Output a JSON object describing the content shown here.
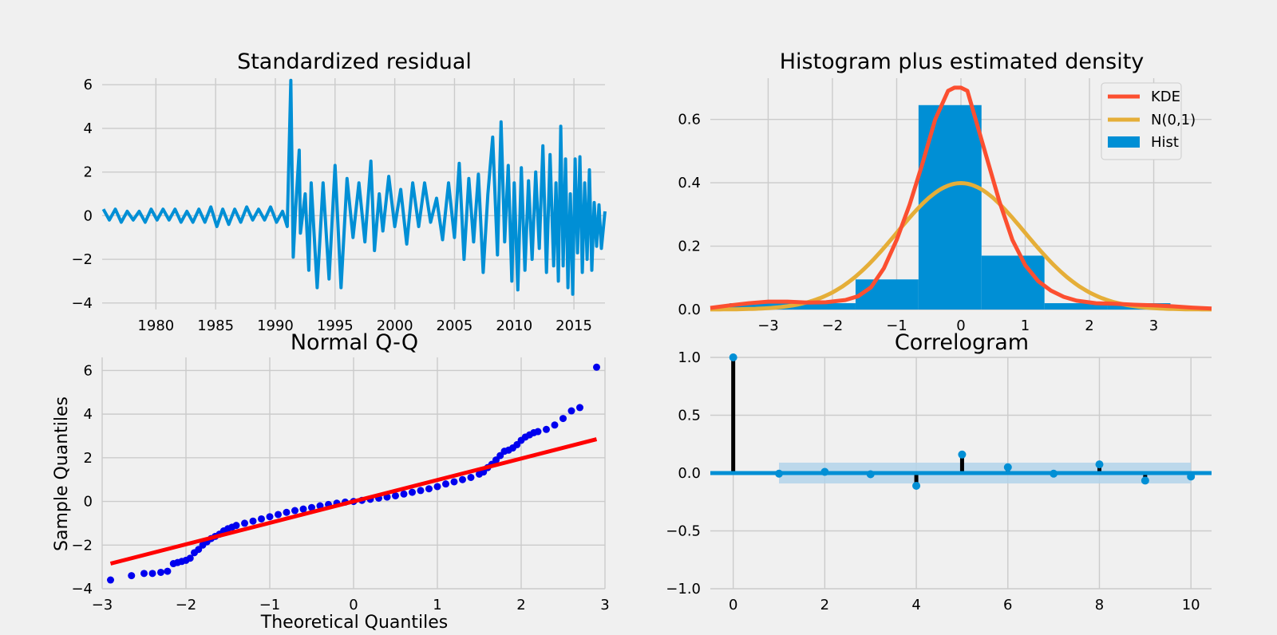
{
  "colors": {
    "background": "#f0f0f0",
    "grid": "#cbcbcb",
    "series_blue": "#008fd5",
    "kde": "#fc4f30",
    "normal": "#e5ae38",
    "qq_points": "#0000ee",
    "qq_line": "#ff0000",
    "stem": "#000000",
    "conf_band": "#b3d4ea"
  },
  "chart_data": [
    {
      "id": "residual",
      "type": "line",
      "title": "Standardized residual",
      "xlabel": "",
      "ylabel": "",
      "xlim": [
        1975.5,
        2017.6
      ],
      "ylim": [
        -4.3,
        6.3
      ],
      "xticks": [
        1980,
        1985,
        1990,
        1995,
        2000,
        2005,
        2010,
        2015
      ],
      "xtick_labels": [
        "1980",
        "1985",
        "1990",
        "1995",
        "2000",
        "2005",
        "2010",
        "2015"
      ],
      "yticks": [
        -4,
        -2,
        0,
        2,
        4,
        6
      ],
      "ytick_labels": [
        "−4",
        "−2",
        "0",
        "2",
        "4",
        "6"
      ],
      "grid": true,
      "series": [
        {
          "x": [
            1975.6,
            1976.1,
            1976.6,
            1977.1,
            1977.6,
            1978.1,
            1978.6,
            1979.1,
            1979.6,
            1980.1,
            1980.6,
            1981.1,
            1981.6,
            1982.1,
            1982.6,
            1983.1,
            1983.6,
            1984.1,
            1984.6,
            1985.1,
            1985.6,
            1986.1,
            1986.6,
            1987.1,
            1987.6,
            1988.1,
            1988.6,
            1989.1,
            1989.6,
            1990.1,
            1990.6,
            1991.0,
            1991.3,
            1991.5,
            1991.7,
            1992.0,
            1992.1,
            1992.5,
            1992.8,
            1993.0,
            1993.5,
            1994.0,
            1994.5,
            1995.0,
            1995.5,
            1996.0,
            1996.5,
            1997.0,
            1997.5,
            1998.0,
            1998.3,
            1998.7,
            1999.0,
            1999.5,
            2000.0,
            2000.5,
            2001.0,
            2001.5,
            2002.0,
            2002.5,
            2003.0,
            2003.5,
            2004.0,
            2004.5,
            2005.0,
            2005.4,
            2005.8,
            2006.2,
            2006.6,
            2007.0,
            2007.4,
            2007.8,
            2008.2,
            2008.6,
            2008.9,
            2009.2,
            2009.5,
            2009.8,
            2010.0,
            2010.3,
            2010.6,
            2010.9,
            2011.2,
            2011.5,
            2011.8,
            2012.1,
            2012.4,
            2012.7,
            2013.0,
            2013.3,
            2013.5,
            2013.7,
            2013.9,
            2014.1,
            2014.3,
            2014.5,
            2014.7,
            2014.9,
            2015.1,
            2015.3,
            2015.5,
            2015.7,
            2015.9,
            2016.1,
            2016.3,
            2016.5,
            2016.7,
            2016.9,
            2017.1,
            2017.3,
            2017.6
          ],
          "y": [
            0.3,
            -0.2,
            0.3,
            -0.3,
            0.2,
            -0.2,
            0.2,
            -0.3,
            0.3,
            -0.2,
            0.3,
            -0.2,
            0.3,
            -0.3,
            0.2,
            -0.3,
            0.3,
            -0.3,
            0.4,
            -0.5,
            0.3,
            -0.4,
            0.3,
            -0.3,
            0.4,
            -0.2,
            0.3,
            -0.2,
            0.4,
            -0.3,
            0.2,
            -0.5,
            6.2,
            -1.9,
            0.3,
            3.0,
            -0.8,
            1.0,
            -2.5,
            1.5,
            -3.3,
            1.5,
            -2.9,
            2.3,
            -3.3,
            1.7,
            -1.0,
            1.5,
            -1.2,
            2.5,
            -1.6,
            1.0,
            -0.7,
            1.8,
            -0.5,
            1.2,
            -1.3,
            1.5,
            -0.5,
            1.5,
            -0.3,
            0.8,
            -1.1,
            1.5,
            -1.0,
            2.4,
            -2.0,
            1.7,
            -1.2,
            1.9,
            -2.6,
            1.0,
            3.6,
            -1.8,
            4.3,
            -1.2,
            2.3,
            -3.0,
            1.5,
            -3.4,
            2.2,
            -2.5,
            1.6,
            -2.0,
            2.0,
            -1.5,
            3.2,
            -2.6,
            2.8,
            -2.3,
            1.5,
            -3.0,
            4.1,
            -2.3,
            2.6,
            -3.3,
            1.0,
            -3.6,
            2.6,
            -1.7,
            2.7,
            -2.6,
            1.5,
            -2.0,
            2.1,
            -2.5,
            0.6,
            -1.4,
            0.5,
            -1.5,
            0.2
          ]
        }
      ]
    },
    {
      "id": "histogram",
      "type": "bar",
      "title": "Histogram plus estimated density",
      "xlabel": "",
      "ylabel": "",
      "xlim": [
        -3.9,
        3.9
      ],
      "ylim": [
        0,
        0.73
      ],
      "xticks": [
        -3,
        -2,
        -1,
        0,
        1,
        2,
        3
      ],
      "xtick_labels": [
        "−3",
        "−2",
        "−1",
        "0",
        "1",
        "2",
        "3"
      ],
      "yticks": [
        0.0,
        0.2,
        0.4,
        0.6
      ],
      "ytick_labels": [
        "0.0",
        "0.2",
        "0.4",
        "0.6"
      ],
      "grid": true,
      "legend_position": "top-right",
      "legend": [
        "KDE",
        "N(0,1)",
        "Hist"
      ],
      "bins": [
        -3.6,
        -2.62,
        -1.64,
        -0.66,
        0.32,
        1.3,
        2.28,
        3.26
      ],
      "hist_values": [
        0.02,
        0.02,
        0.095,
        0.645,
        0.17,
        0.02,
        0.02
      ],
      "kde": {
        "x": [
          -3.9,
          -3.6,
          -3.3,
          -3.0,
          -2.7,
          -2.4,
          -2.1,
          -1.8,
          -1.6,
          -1.4,
          -1.2,
          -1.0,
          -0.8,
          -0.6,
          -0.4,
          -0.2,
          -0.1,
          0.0,
          0.1,
          0.2,
          0.4,
          0.6,
          0.8,
          1.0,
          1.2,
          1.4,
          1.6,
          1.8,
          2.1,
          2.4,
          2.7,
          3.0,
          3.3,
          3.6,
          3.9
        ],
        "y": [
          0.005,
          0.013,
          0.02,
          0.025,
          0.025,
          0.022,
          0.023,
          0.03,
          0.042,
          0.07,
          0.13,
          0.22,
          0.33,
          0.46,
          0.6,
          0.69,
          0.7,
          0.7,
          0.69,
          0.62,
          0.48,
          0.34,
          0.22,
          0.14,
          0.09,
          0.06,
          0.04,
          0.028,
          0.02,
          0.018,
          0.015,
          0.013,
          0.01,
          0.006,
          0.003
        ]
      },
      "normal": {
        "mean": 0,
        "std": 1
      }
    },
    {
      "id": "qq",
      "type": "scatter",
      "title": "Normal Q-Q",
      "xlabel": "Theoretical Quantiles",
      "ylabel": "Sample Quantiles",
      "xlim": [
        -3,
        3
      ],
      "ylim": [
        -4,
        6.6
      ],
      "xticks": [
        -3,
        -2,
        -1,
        0,
        1,
        2,
        3
      ],
      "xtick_labels": [
        "−3",
        "−2",
        "−1",
        "0",
        "1",
        "2",
        "3"
      ],
      "yticks": [
        -4,
        -2,
        0,
        2,
        4,
        6
      ],
      "ytick_labels": [
        "−4",
        "−2",
        "0",
        "2",
        "4",
        "6"
      ],
      "grid": true,
      "points": {
        "x": [
          -2.9,
          -2.65,
          -2.5,
          -2.4,
          -2.3,
          -2.22,
          -2.15,
          -2.1,
          -2.05,
          -2.0,
          -1.95,
          -1.9,
          -1.85,
          -1.8,
          -1.75,
          -1.7,
          -1.65,
          -1.6,
          -1.55,
          -1.5,
          -1.45,
          -1.4,
          -1.3,
          -1.2,
          -1.1,
          -1.0,
          -0.9,
          -0.8,
          -0.7,
          -0.6,
          -0.5,
          -0.4,
          -0.3,
          -0.2,
          -0.1,
          0.0,
          0.1,
          0.2,
          0.3,
          0.4,
          0.5,
          0.6,
          0.7,
          0.8,
          0.9,
          1.0,
          1.1,
          1.2,
          1.3,
          1.4,
          1.5,
          1.55,
          1.6,
          1.65,
          1.7,
          1.75,
          1.8,
          1.85,
          1.9,
          1.95,
          2.0,
          2.05,
          2.1,
          2.15,
          2.2,
          2.3,
          2.4,
          2.5,
          2.6,
          2.7,
          2.9
        ],
        "y": [
          -3.6,
          -3.4,
          -3.3,
          -3.3,
          -3.25,
          -3.2,
          -2.85,
          -2.8,
          -2.75,
          -2.7,
          -2.6,
          -2.35,
          -2.2,
          -2.0,
          -1.85,
          -1.7,
          -1.6,
          -1.5,
          -1.35,
          -1.25,
          -1.18,
          -1.1,
          -1.0,
          -0.9,
          -0.8,
          -0.7,
          -0.6,
          -0.5,
          -0.42,
          -0.35,
          -0.28,
          -0.2,
          -0.14,
          -0.08,
          -0.03,
          0.0,
          0.05,
          0.1,
          0.15,
          0.2,
          0.26,
          0.34,
          0.42,
          0.5,
          0.58,
          0.68,
          0.8,
          0.9,
          1.0,
          1.1,
          1.25,
          1.35,
          1.55,
          1.7,
          1.9,
          2.1,
          2.3,
          2.35,
          2.45,
          2.6,
          2.8,
          2.95,
          3.05,
          3.15,
          3.2,
          3.3,
          3.5,
          3.8,
          4.15,
          4.3,
          6.15
        ]
      },
      "line": {
        "x": [
          -2.9,
          2.9
        ],
        "y": [
          -2.85,
          2.85
        ]
      }
    },
    {
      "id": "correlogram",
      "type": "bar",
      "title": "Correlogram",
      "xlabel": "",
      "ylabel": "",
      "xlim": [
        -0.5,
        10.45
      ],
      "ylim": [
        -1.0,
        1.0
      ],
      "xticks": [
        0,
        2,
        4,
        6,
        8,
        10
      ],
      "xtick_labels": [
        "0",
        "2",
        "4",
        "6",
        "8",
        "10"
      ],
      "yticks": [
        -1.0,
        -0.5,
        0.0,
        0.5,
        1.0
      ],
      "ytick_labels": [
        "−1.0",
        "−0.5",
        "0.0",
        "0.5",
        "1.0"
      ],
      "grid": true,
      "lags": [
        0,
        1,
        2,
        3,
        4,
        5,
        6,
        7,
        8,
        9,
        10
      ],
      "acf": [
        1.0,
        -0.005,
        0.01,
        -0.01,
        -0.11,
        0.16,
        0.05,
        -0.005,
        0.075,
        -0.065,
        -0.03
      ],
      "conf_band": {
        "lag_start": 1,
        "lag_end": 10,
        "upper": 0.09,
        "lower": -0.09
      }
    }
  ]
}
